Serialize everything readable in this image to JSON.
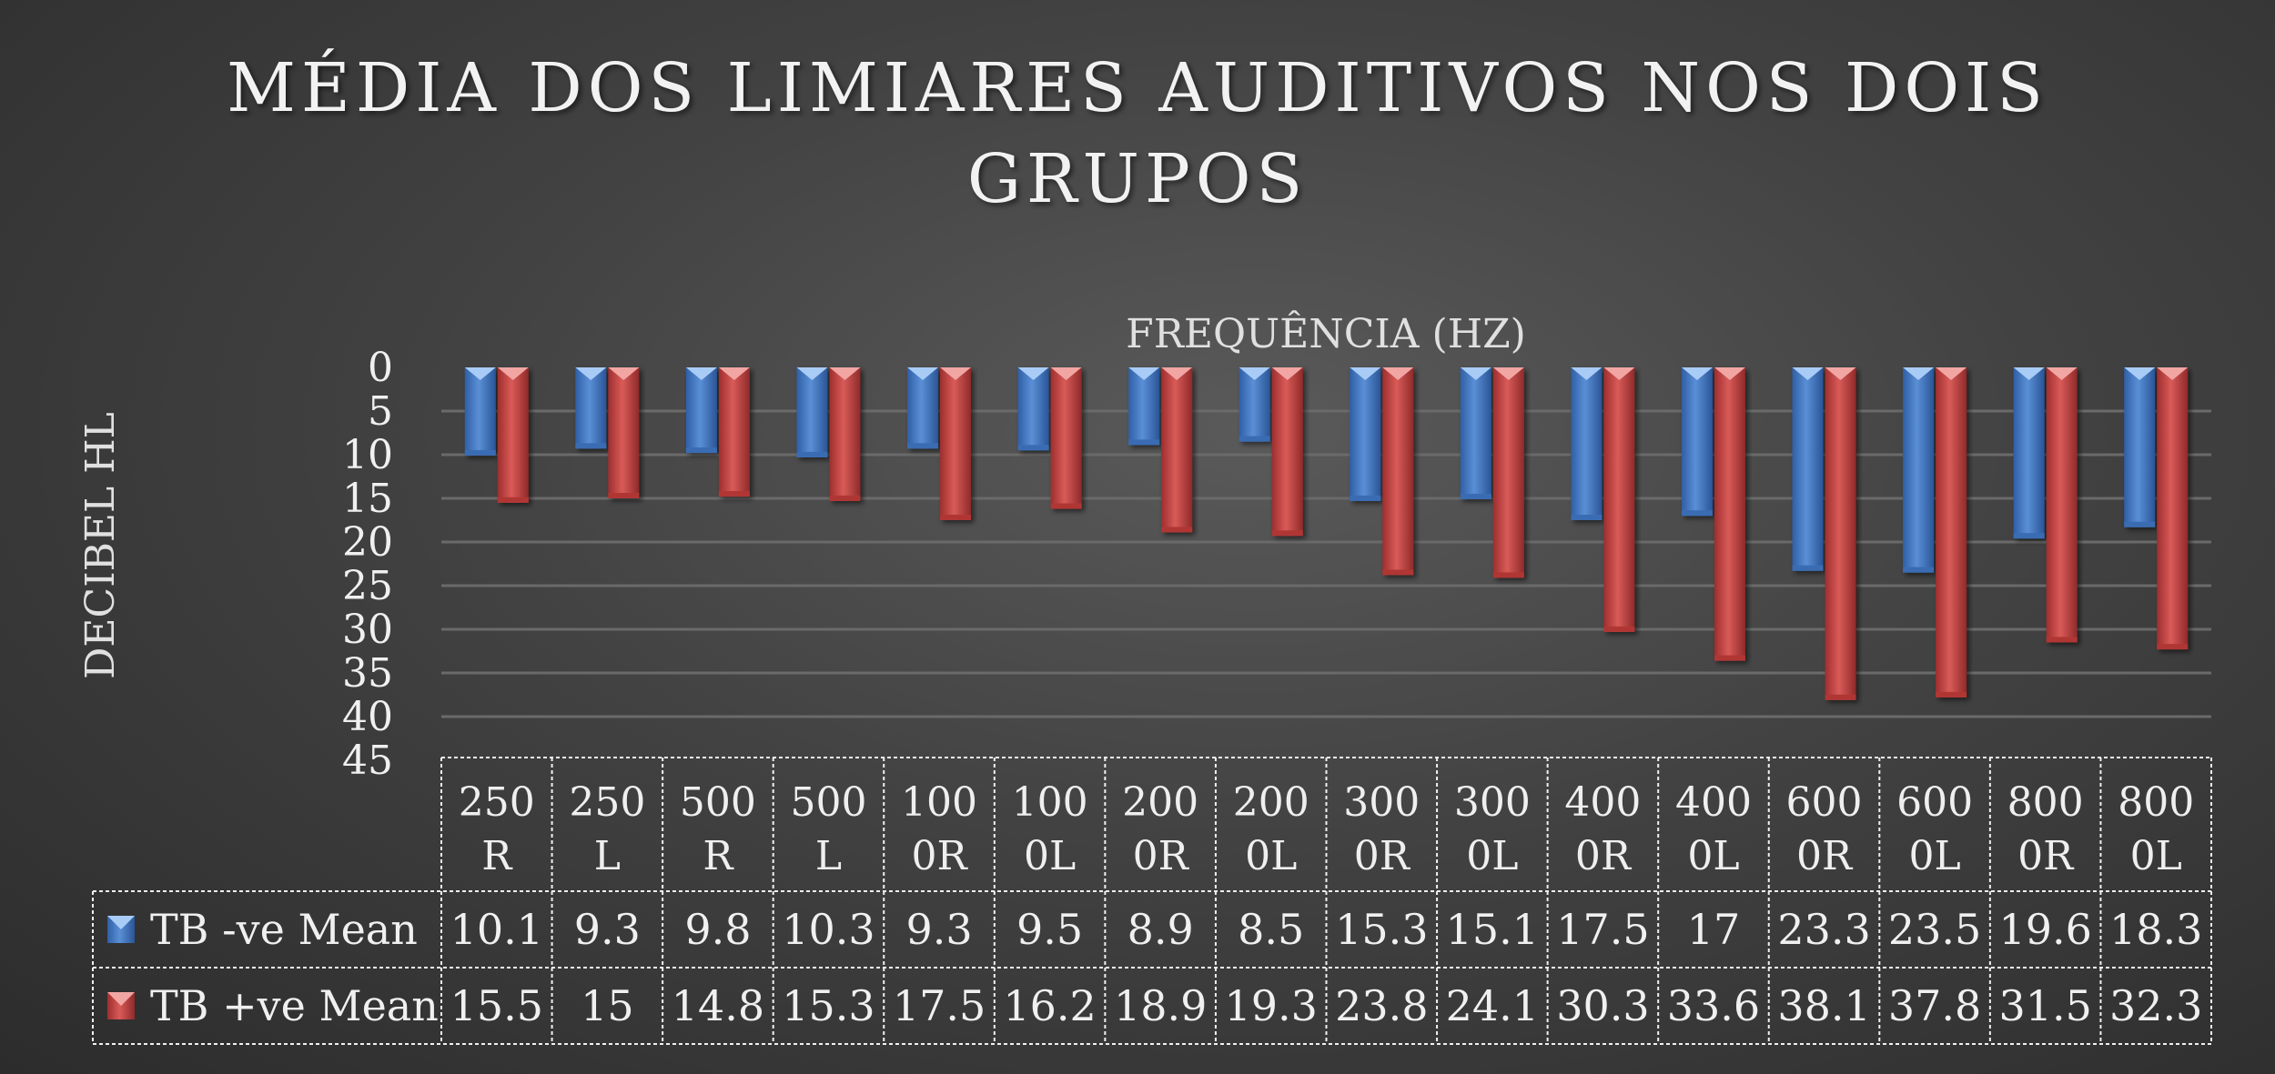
{
  "chart_data": {
    "type": "bar",
    "title": [
      "MÉDIA DOS LIMIARES AUDITIVOS NOS DOIS",
      "GRUPOS"
    ],
    "xlabel": "FREQUÊNCIA (HZ)",
    "ylabel": "DECIBEL HL",
    "ylim": [
      0,
      45
    ],
    "y_reversed": true,
    "yticks": [
      "0",
      "5",
      "10",
      "15",
      "20",
      "25",
      "30",
      "35",
      "40",
      "45"
    ],
    "categories": [
      [
        "250",
        "R"
      ],
      [
        "250",
        "L"
      ],
      [
        "500",
        "R"
      ],
      [
        "500",
        "L"
      ],
      [
        "100",
        "0R"
      ],
      [
        "100",
        "0L"
      ],
      [
        "200",
        "0R"
      ],
      [
        "200",
        "0L"
      ],
      [
        "300",
        "0R"
      ],
      [
        "300",
        "0L"
      ],
      [
        "400",
        "0R"
      ],
      [
        "400",
        "0L"
      ],
      [
        "600",
        "0R"
      ],
      [
        "600",
        "0L"
      ],
      [
        "800",
        "0R"
      ],
      [
        "800",
        "0L"
      ]
    ],
    "series": [
      {
        "name": "TB -ve Mean",
        "color": "#4a7cc4",
        "values": [
          10.1,
          9.3,
          9.8,
          10.3,
          9.3,
          9.5,
          8.9,
          8.5,
          15.3,
          15.1,
          17.5,
          17,
          23.3,
          23.5,
          19.6,
          18.3
        ],
        "labels": [
          "10.1",
          "9.3",
          "9.8",
          "10.3",
          "9.3",
          "9.5",
          "8.9",
          "8.5",
          "15.3",
          "15.1",
          "17.5",
          "17",
          "23.3",
          "23.5",
          "19.6",
          "18.3"
        ]
      },
      {
        "name": "TB +ve Mean",
        "color": "#c0403f",
        "values": [
          15.5,
          15,
          14.8,
          15.3,
          17.5,
          16.2,
          18.9,
          19.3,
          23.8,
          24.1,
          30.3,
          33.6,
          38.1,
          37.8,
          31.5,
          32.3
        ],
        "labels": [
          "15.5",
          "15",
          "14.8",
          "15.3",
          "17.5",
          "16.2",
          "18.9",
          "19.3",
          "23.8",
          "24.1",
          "30.3",
          "33.6",
          "38.1",
          "37.8",
          "31.5",
          "32.3"
        ]
      }
    ],
    "grid": true,
    "legend": "data-table"
  }
}
